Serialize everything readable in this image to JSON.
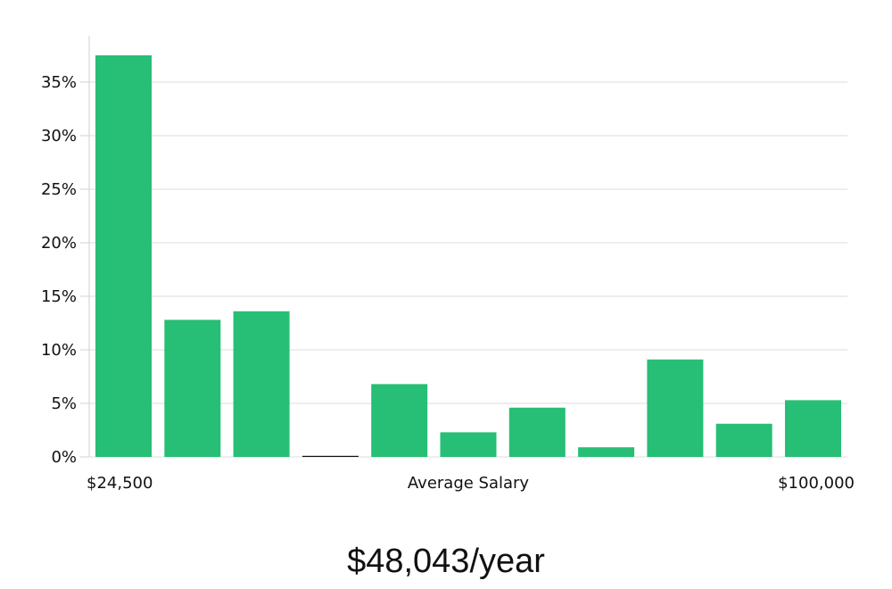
{
  "chart_data": {
    "type": "bar",
    "bar_color": "#27be76",
    "values": [
      37.5,
      12.8,
      13.6,
      0,
      6.8,
      2.3,
      4.6,
      0.9,
      9.1,
      3.1,
      5.3
    ],
    "ylim": [
      0,
      39
    ],
    "yticks": [
      "0%",
      "5%",
      "10%",
      "15%",
      "20%",
      "25%",
      "30%",
      "35%"
    ],
    "x_min_label": "$24,500",
    "x_max_label": "$100,000",
    "xlabel": "Average Salary",
    "grid": true
  },
  "average_salary": "$48,043/year"
}
